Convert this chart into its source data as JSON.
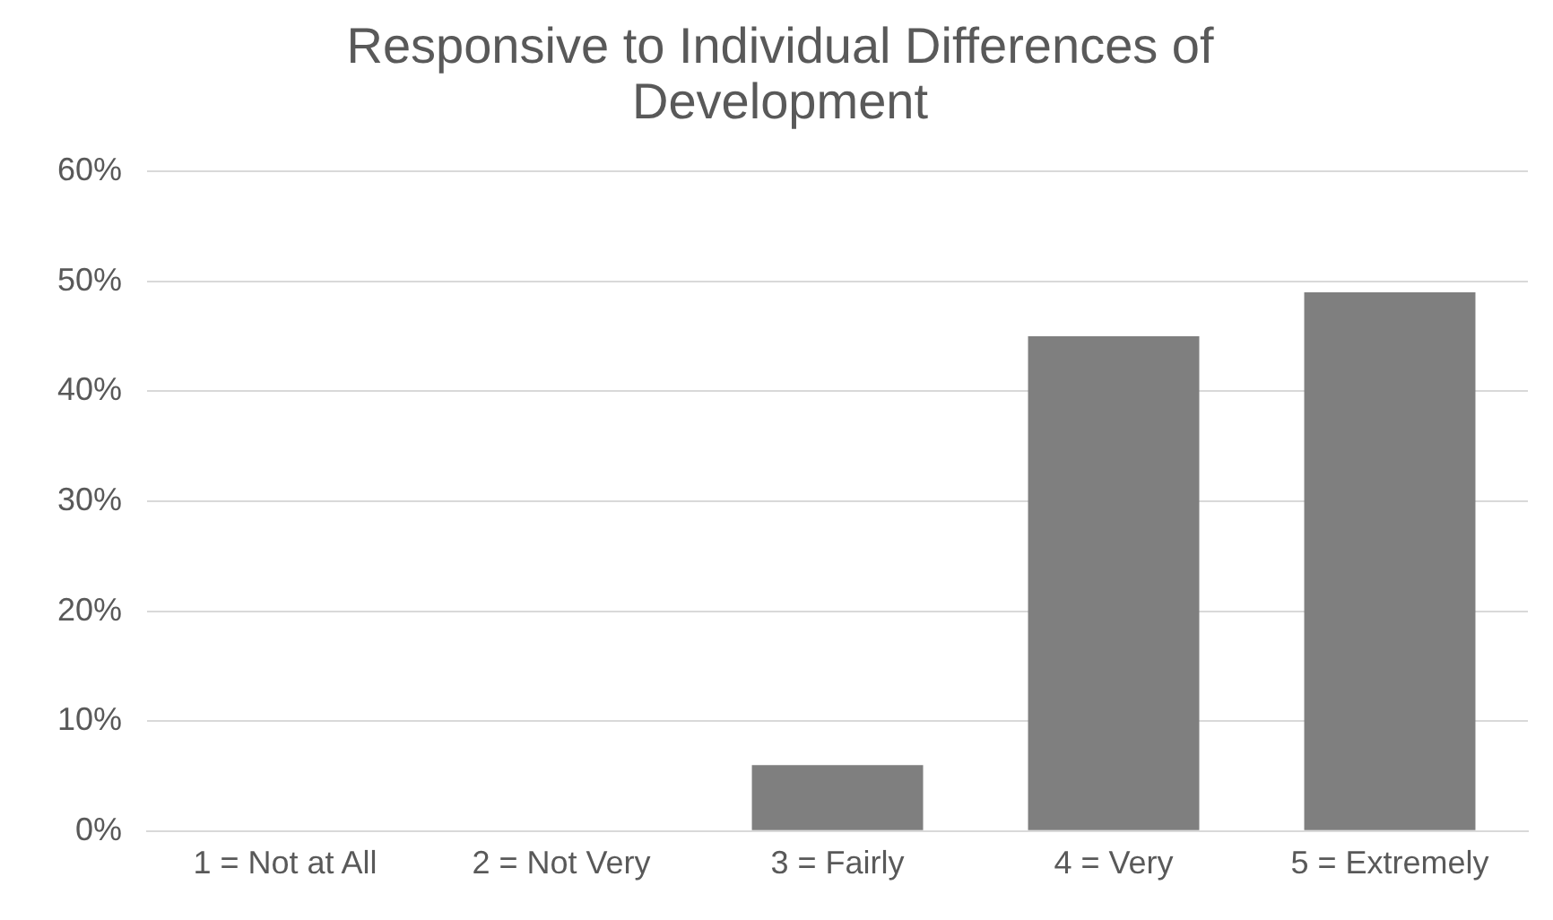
{
  "chart_data": {
    "type": "bar",
    "title": "Responsive to Individual Differences of Development",
    "categories": [
      "1 = Not at All",
      "2 = Not Very",
      "3 = Fairly",
      "4 = Very",
      "5 = Extremely"
    ],
    "values": [
      0,
      0,
      6,
      45,
      49
    ],
    "color": "#7f7f7f",
    "ylim": [
      0,
      60
    ],
    "yticks": [
      {
        "value": 0,
        "label": "0%"
      },
      {
        "value": 10,
        "label": "10%"
      },
      {
        "value": 20,
        "label": "20%"
      },
      {
        "value": 30,
        "label": "30%"
      },
      {
        "value": 40,
        "label": "40%"
      },
      {
        "value": 50,
        "label": "50%"
      },
      {
        "value": 60,
        "label": "60%"
      }
    ],
    "grid": "y",
    "legend": false
  }
}
